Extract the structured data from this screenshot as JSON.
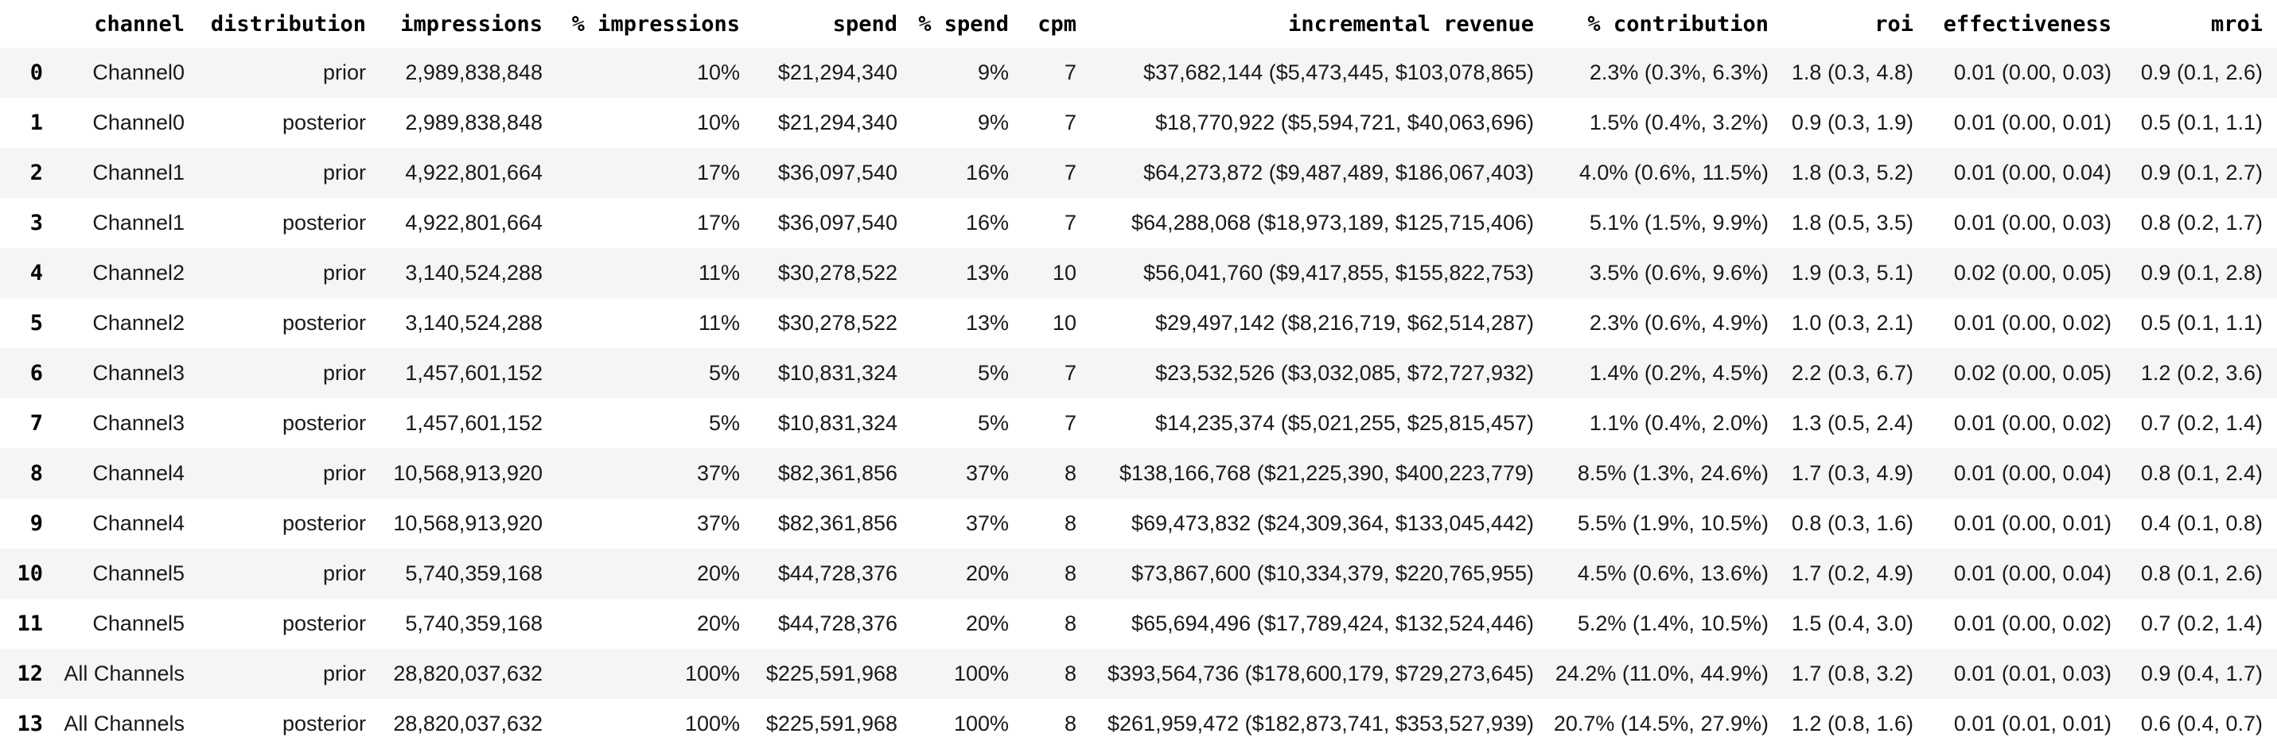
{
  "colors": {
    "background": "#ffffff",
    "row_stripe": "#f5f5f5",
    "header_text": "#000000",
    "body_text": "#1a1a1a"
  },
  "chart_data": {
    "type": "table",
    "title": "",
    "columns": [
      "",
      "channel",
      "distribution",
      "impressions",
      "% impressions",
      "spend",
      "% spend",
      "cpm",
      "incremental revenue",
      "% contribution",
      "roi",
      "effectiveness",
      "mroi"
    ],
    "rows": [
      [
        "0",
        "Channel0",
        "prior",
        "2,989,838,848",
        "10%",
        "$21,294,340",
        "9%",
        "7",
        "$37,682,144 ($5,473,445, $103,078,865)",
        "2.3% (0.3%, 6.3%)",
        "1.8 (0.3, 4.8)",
        "0.01 (0.00, 0.03)",
        "0.9 (0.1, 2.6)"
      ],
      [
        "1",
        "Channel0",
        "posterior",
        "2,989,838,848",
        "10%",
        "$21,294,340",
        "9%",
        "7",
        "$18,770,922 ($5,594,721, $40,063,696)",
        "1.5% (0.4%, 3.2%)",
        "0.9 (0.3, 1.9)",
        "0.01 (0.00, 0.01)",
        "0.5 (0.1, 1.1)"
      ],
      [
        "2",
        "Channel1",
        "prior",
        "4,922,801,664",
        "17%",
        "$36,097,540",
        "16%",
        "7",
        "$64,273,872 ($9,487,489, $186,067,403)",
        "4.0% (0.6%, 11.5%)",
        "1.8 (0.3, 5.2)",
        "0.01 (0.00, 0.04)",
        "0.9 (0.1, 2.7)"
      ],
      [
        "3",
        "Channel1",
        "posterior",
        "4,922,801,664",
        "17%",
        "$36,097,540",
        "16%",
        "7",
        "$64,288,068 ($18,973,189, $125,715,406)",
        "5.1% (1.5%, 9.9%)",
        "1.8 (0.5, 3.5)",
        "0.01 (0.00, 0.03)",
        "0.8 (0.2, 1.7)"
      ],
      [
        "4",
        "Channel2",
        "prior",
        "3,140,524,288",
        "11%",
        "$30,278,522",
        "13%",
        "10",
        "$56,041,760 ($9,417,855, $155,822,753)",
        "3.5% (0.6%, 9.6%)",
        "1.9 (0.3, 5.1)",
        "0.02 (0.00, 0.05)",
        "0.9 (0.1, 2.8)"
      ],
      [
        "5",
        "Channel2",
        "posterior",
        "3,140,524,288",
        "11%",
        "$30,278,522",
        "13%",
        "10",
        "$29,497,142 ($8,216,719, $62,514,287)",
        "2.3% (0.6%, 4.9%)",
        "1.0 (0.3, 2.1)",
        "0.01 (0.00, 0.02)",
        "0.5 (0.1, 1.1)"
      ],
      [
        "6",
        "Channel3",
        "prior",
        "1,457,601,152",
        "5%",
        "$10,831,324",
        "5%",
        "7",
        "$23,532,526 ($3,032,085, $72,727,932)",
        "1.4% (0.2%, 4.5%)",
        "2.2 (0.3, 6.7)",
        "0.02 (0.00, 0.05)",
        "1.2 (0.2, 3.6)"
      ],
      [
        "7",
        "Channel3",
        "posterior",
        "1,457,601,152",
        "5%",
        "$10,831,324",
        "5%",
        "7",
        "$14,235,374 ($5,021,255, $25,815,457)",
        "1.1% (0.4%, 2.0%)",
        "1.3 (0.5, 2.4)",
        "0.01 (0.00, 0.02)",
        "0.7 (0.2, 1.4)"
      ],
      [
        "8",
        "Channel4",
        "prior",
        "10,568,913,920",
        "37%",
        "$82,361,856",
        "37%",
        "8",
        "$138,166,768 ($21,225,390, $400,223,779)",
        "8.5% (1.3%, 24.6%)",
        "1.7 (0.3, 4.9)",
        "0.01 (0.00, 0.04)",
        "0.8 (0.1, 2.4)"
      ],
      [
        "9",
        "Channel4",
        "posterior",
        "10,568,913,920",
        "37%",
        "$82,361,856",
        "37%",
        "8",
        "$69,473,832 ($24,309,364, $133,045,442)",
        "5.5% (1.9%, 10.5%)",
        "0.8 (0.3, 1.6)",
        "0.01 (0.00, 0.01)",
        "0.4 (0.1, 0.8)"
      ],
      [
        "10",
        "Channel5",
        "prior",
        "5,740,359,168",
        "20%",
        "$44,728,376",
        "20%",
        "8",
        "$73,867,600 ($10,334,379, $220,765,955)",
        "4.5% (0.6%, 13.6%)",
        "1.7 (0.2, 4.9)",
        "0.01 (0.00, 0.04)",
        "0.8 (0.1, 2.6)"
      ],
      [
        "11",
        "Channel5",
        "posterior",
        "5,740,359,168",
        "20%",
        "$44,728,376",
        "20%",
        "8",
        "$65,694,496 ($17,789,424, $132,524,446)",
        "5.2% (1.4%, 10.5%)",
        "1.5 (0.4, 3.0)",
        "0.01 (0.00, 0.02)",
        "0.7 (0.2, 1.4)"
      ],
      [
        "12",
        "All Channels",
        "prior",
        "28,820,037,632",
        "100%",
        "$225,591,968",
        "100%",
        "8",
        "$393,564,736 ($178,600,179, $729,273,645)",
        "24.2% (11.0%, 44.9%)",
        "1.7 (0.8, 3.2)",
        "0.01 (0.01, 0.03)",
        "0.9 (0.4, 1.7)"
      ],
      [
        "13",
        "All Channels",
        "posterior",
        "28,820,037,632",
        "100%",
        "$225,591,968",
        "100%",
        "8",
        "$261,959,472 ($182,873,741, $353,527,939)",
        "20.7% (14.5%, 27.9%)",
        "1.2 (0.8, 1.6)",
        "0.01 (0.01, 0.01)",
        "0.6 (0.4, 0.7)"
      ]
    ]
  }
}
